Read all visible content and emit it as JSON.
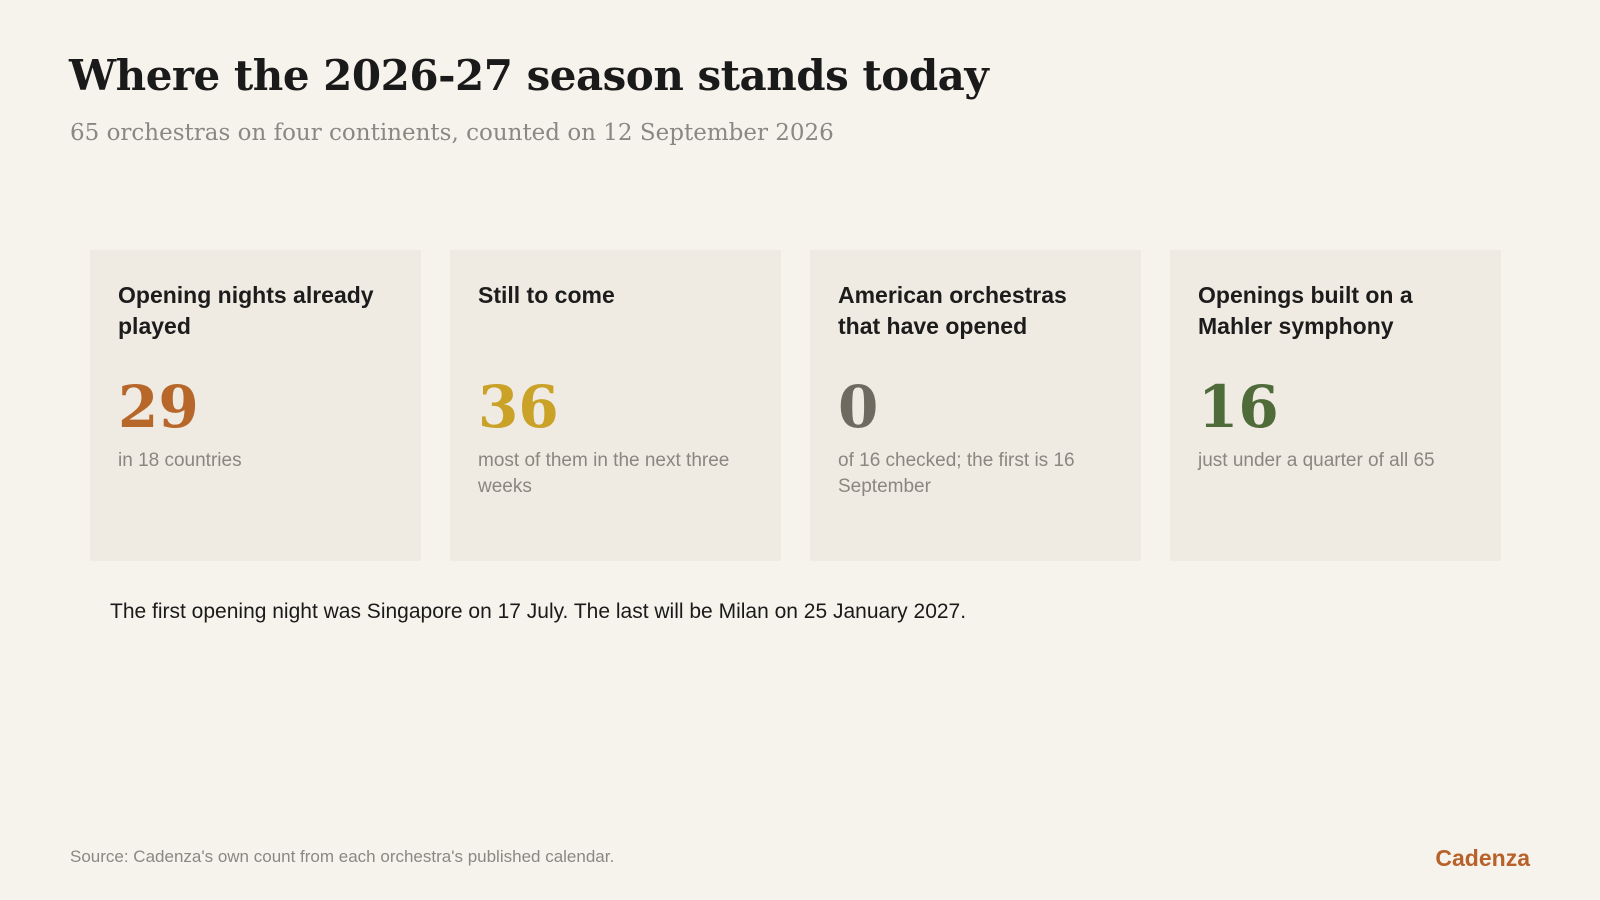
{
  "header": {
    "title": "Where the 2026-27 season stands today",
    "subtitle": "65 orchestras on four continents, counted on 12 September 2026"
  },
  "cards": [
    {
      "label": "Opening nights already played",
      "value": "29",
      "note": "in 18 countries",
      "color": "#b8672a"
    },
    {
      "label": "Still to come",
      "value": "36",
      "note": "most of them in the next three weeks",
      "color": "#c9a227"
    },
    {
      "label": "American orchestras that have opened",
      "value": "0",
      "note": "of 16 checked; the first is 16 September",
      "color": "#6f6a5f"
    },
    {
      "label": "Openings built on a Mahler symphony",
      "value": "16",
      "note": "just under a quarter of all 65",
      "color": "#4f6b3a"
    }
  ],
  "footnote": "The first opening night was Singapore on 17 July. The last will be Milan on 25 January 2027.",
  "source": "Source: Cadenza's own count from each orchestra's published calendar.",
  "brand": "Cadenza"
}
